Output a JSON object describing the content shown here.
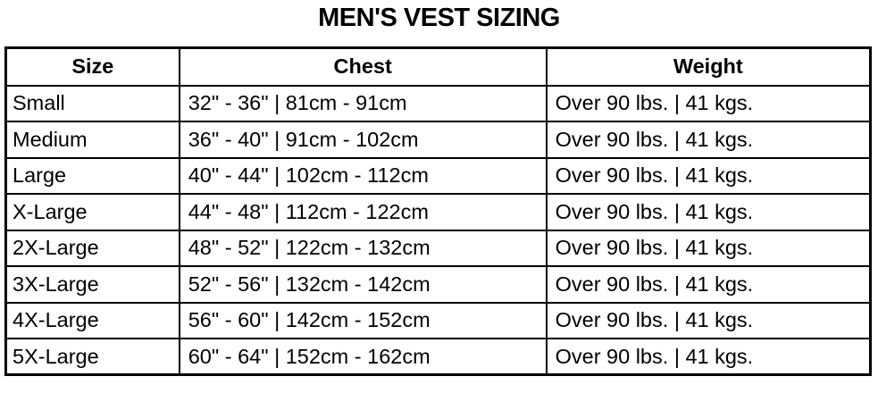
{
  "title": "MEN'S VEST SIZING",
  "table": {
    "headers": [
      "Size",
      "Chest",
      "Weight"
    ],
    "rows": [
      [
        "Small",
        "32\" - 36\" | 81cm - 91cm",
        "Over 90 lbs. | 41 kgs."
      ],
      [
        "Medium",
        "36\" - 40\" | 91cm - 102cm",
        "Over 90 lbs. | 41 kgs."
      ],
      [
        "Large",
        "40\" - 44\" | 102cm - 112cm",
        "Over 90 lbs. | 41 kgs."
      ],
      [
        "X-Large",
        "44\" - 48\" | 112cm - 122cm",
        "Over 90 lbs. | 41 kgs."
      ],
      [
        "2X-Large",
        "48\" - 52\" | 122cm - 132cm",
        "Over 90 lbs. | 41 kgs."
      ],
      [
        "3X-Large",
        "52\" - 56\" | 132cm - 142cm",
        "Over 90 lbs. | 41 kgs."
      ],
      [
        "4X-Large",
        "56\" - 60\" | 142cm - 152cm",
        "Over 90 lbs. | 41 kgs."
      ],
      [
        "5X-Large",
        "60\" - 64\" | 152cm - 162cm",
        "Over 90 lbs. | 41 kgs."
      ]
    ]
  }
}
